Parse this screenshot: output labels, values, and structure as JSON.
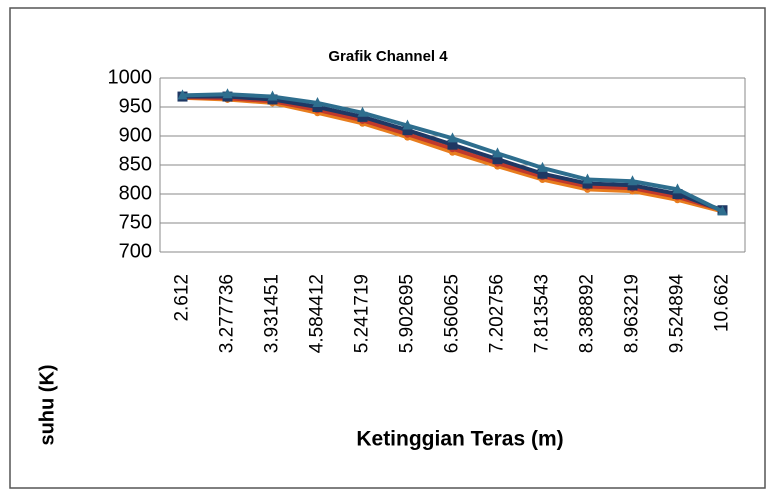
{
  "chart_data": {
    "type": "line",
    "title": "Grafik Channel 4",
    "x_label": "Ketinggian Teras (m)",
    "y_label": "suhu (K)",
    "categories": [
      "2.612",
      "3.277736",
      "3.931451",
      "4.584412",
      "5.241719",
      "5.902695",
      "6.560625",
      "7.202756",
      "7.813543",
      "8.388892",
      "8.963219",
      "9.524894",
      "10.662"
    ],
    "series": [
      {
        "color": "#e87d1e",
        "marker": "circle",
        "values": [
          966,
          963,
          957,
          940,
          922,
          898,
          872,
          848,
          825,
          808,
          805,
          790,
          770
        ]
      },
      {
        "color": "#c0392b",
        "marker": "circle",
        "values": [
          967,
          965,
          960,
          945,
          927,
          903,
          878,
          853,
          830,
          813,
          810,
          795,
          772
        ]
      },
      {
        "color": "#1f3864",
        "marker": "square",
        "values": [
          968,
          968,
          963,
          950,
          933,
          910,
          885,
          860,
          835,
          818,
          815,
          800,
          772
        ]
      },
      {
        "color": "#2e6e8e",
        "marker": "triangle",
        "values": [
          970,
          972,
          968,
          957,
          940,
          918,
          896,
          870,
          845,
          825,
          822,
          808,
          770
        ]
      }
    ],
    "ylim": [
      700,
      1000
    ],
    "yticks": [
      700,
      750,
      800,
      850,
      900,
      950,
      1000
    ],
    "grid": true
  }
}
